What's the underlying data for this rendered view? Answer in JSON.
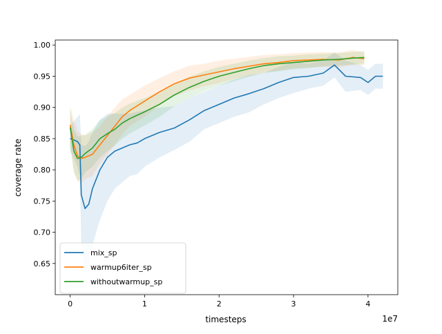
{
  "chart_data": {
    "type": "line",
    "title": "",
    "xlabel": "timesteps",
    "ylabel": "coverage rate",
    "x_offset_label": "1e7",
    "xlim": [
      -0.2,
      4.4
    ],
    "ylim": [
      0.6,
      1.008
    ],
    "xticks": [
      0,
      1,
      2,
      3,
      4
    ],
    "xtick_labels": [
      "0",
      "1",
      "2",
      "3",
      "4"
    ],
    "yticks": [
      0.65,
      0.7,
      0.75,
      0.8,
      0.85,
      0.9,
      0.95,
      1.0
    ],
    "ytick_labels": [
      "0.65",
      "0.70",
      "0.75",
      "0.80",
      "0.85",
      "0.90",
      "0.95",
      "1.00"
    ],
    "grid": false,
    "legend_position": "lower-left",
    "series": [
      {
        "name": "mix_sp",
        "color": "#1f77b4",
        "x": [
          0,
          0.05,
          0.1,
          0.13,
          0.15,
          0.2,
          0.25,
          0.3,
          0.4,
          0.5,
          0.6,
          0.7,
          0.8,
          0.9,
          1.0,
          1.2,
          1.4,
          1.6,
          1.8,
          2.0,
          2.2,
          2.4,
          2.6,
          2.8,
          3.0,
          3.2,
          3.4,
          3.55,
          3.7,
          3.9,
          4.0,
          4.1,
          4.2
        ],
        "y": [
          0.85,
          0.848,
          0.845,
          0.84,
          0.76,
          0.738,
          0.745,
          0.77,
          0.8,
          0.82,
          0.83,
          0.835,
          0.84,
          0.843,
          0.85,
          0.86,
          0.867,
          0.88,
          0.895,
          0.905,
          0.915,
          0.922,
          0.93,
          0.94,
          0.948,
          0.95,
          0.955,
          0.968,
          0.95,
          0.948,
          0.94,
          0.95,
          0.95
        ],
        "band_halfwidth": [
          0.02,
          0.03,
          0.04,
          0.05,
          0.08,
          0.1,
          0.1,
          0.09,
          0.08,
          0.07,
          0.06,
          0.055,
          0.05,
          0.05,
          0.045,
          0.04,
          0.035,
          0.035,
          0.03,
          0.03,
          0.03,
          0.03,
          0.025,
          0.025,
          0.025,
          0.02,
          0.02,
          0.02,
          0.025,
          0.02,
          0.02,
          0.02,
          0.02
        ]
      },
      {
        "name": "warmup6iter_sp",
        "color": "#ff7f0e",
        "x": [
          0,
          0.05,
          0.1,
          0.15,
          0.2,
          0.3,
          0.4,
          0.5,
          0.6,
          0.7,
          0.8,
          1.0,
          1.2,
          1.4,
          1.6,
          1.8,
          2.0,
          2.2,
          2.4,
          2.6,
          2.8,
          3.0,
          3.2,
          3.4,
          3.6,
          3.8,
          3.95
        ],
        "y": [
          0.872,
          0.84,
          0.822,
          0.818,
          0.82,
          0.825,
          0.84,
          0.855,
          0.87,
          0.885,
          0.895,
          0.91,
          0.925,
          0.938,
          0.947,
          0.952,
          0.957,
          0.962,
          0.966,
          0.97,
          0.972,
          0.975,
          0.976,
          0.977,
          0.976,
          0.98,
          0.978
        ],
        "band_halfwidth": [
          0.03,
          0.04,
          0.04,
          0.04,
          0.035,
          0.035,
          0.03,
          0.03,
          0.03,
          0.028,
          0.025,
          0.025,
          0.022,
          0.02,
          0.02,
          0.018,
          0.018,
          0.016,
          0.015,
          0.014,
          0.013,
          0.012,
          0.012,
          0.012,
          0.012,
          0.012,
          0.01
        ]
      },
      {
        "name": "withoutwarmup_sp",
        "color": "#2ca02c",
        "x": [
          0,
          0.05,
          0.1,
          0.15,
          0.2,
          0.3,
          0.4,
          0.5,
          0.6,
          0.7,
          0.8,
          1.0,
          1.2,
          1.4,
          1.6,
          1.8,
          2.0,
          2.2,
          2.4,
          2.6,
          2.8,
          3.0,
          3.2,
          3.4,
          3.6,
          3.8,
          3.95
        ],
        "y": [
          0.868,
          0.83,
          0.818,
          0.82,
          0.826,
          0.835,
          0.85,
          0.858,
          0.865,
          0.875,
          0.882,
          0.893,
          0.905,
          0.92,
          0.932,
          0.942,
          0.95,
          0.956,
          0.962,
          0.967,
          0.97,
          0.972,
          0.974,
          0.976,
          0.977,
          0.979,
          0.98
        ],
        "band_halfwidth": [
          0.03,
          0.035,
          0.035,
          0.035,
          0.03,
          0.03,
          0.03,
          0.028,
          0.026,
          0.025,
          0.024,
          0.022,
          0.02,
          0.018,
          0.017,
          0.016,
          0.015,
          0.014,
          0.013,
          0.012,
          0.012,
          0.011,
          0.011,
          0.01,
          0.01,
          0.01,
          0.01
        ]
      }
    ]
  }
}
